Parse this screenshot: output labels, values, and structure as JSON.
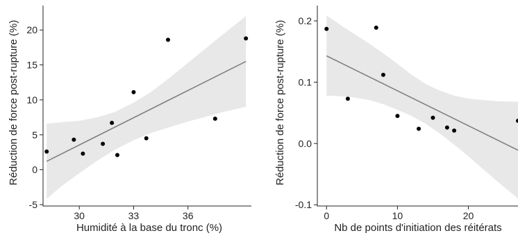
{
  "chart_data": [
    {
      "type": "scatter",
      "title": "",
      "xlabel": "Humidité à la base du tronc (%)",
      "ylabel": "Réduction de force post-rupture (%)",
      "xlim": [
        28.0,
        39.5
      ],
      "ylim": [
        -5.2,
        23.5
      ],
      "xticks": [
        30,
        33,
        36
      ],
      "yticks": [
        -5,
        0,
        5,
        10,
        15,
        20
      ],
      "xtick_labels": [
        "30",
        "33",
        "36"
      ],
      "ytick_labels": [
        "-5",
        "0",
        "5",
        "10",
        "15",
        "20"
      ],
      "grid": false,
      "points": [
        {
          "x": 28.2,
          "y": 2.6
        },
        {
          "x": 29.7,
          "y": 4.3
        },
        {
          "x": 30.2,
          "y": 2.3
        },
        {
          "x": 31.3,
          "y": 3.7
        },
        {
          "x": 31.8,
          "y": 6.7
        },
        {
          "x": 32.1,
          "y": 2.1
        },
        {
          "x": 33.0,
          "y": 11.1
        },
        {
          "x": 33.7,
          "y": 4.5
        },
        {
          "x": 34.9,
          "y": 18.6
        },
        {
          "x": 37.5,
          "y": 7.3
        },
        {
          "x": 39.2,
          "y": 18.8
        }
      ],
      "fit_line": {
        "x": [
          28.2,
          39.2
        ],
        "y": [
          1.2,
          15.5
        ]
      },
      "confidence_band": {
        "x": [
          28.2,
          29.0,
          30.0,
          31.0,
          32.0,
          33.0,
          34.0,
          35.0,
          36.0,
          37.0,
          38.0,
          39.2
        ],
        "upper": [
          6.6,
          6.8,
          7.0,
          7.5,
          8.3,
          9.6,
          11.2,
          13.2,
          15.3,
          17.4,
          19.5,
          22.0
        ],
        "lower": [
          -4.2,
          -2.4,
          -0.5,
          1.3,
          2.9,
          4.2,
          5.3,
          6.1,
          6.9,
          7.6,
          8.3,
          9.0
        ]
      },
      "colors": {
        "points": "#000000",
        "line": "#808080",
        "band": "#e8e8e8"
      }
    },
    {
      "type": "scatter",
      "title": "",
      "xlabel": "Nb de points d'initiation des réitérats",
      "ylabel": "Réduction de force post-rupture (%)",
      "xlim": [
        -1.3,
        27.0
      ],
      "ylim": [
        -0.102,
        0.225
      ],
      "xticks": [
        0,
        10,
        20
      ],
      "yticks": [
        -0.1,
        0.0,
        0.1,
        0.2
      ],
      "xtick_labels": [
        "0",
        "10",
        "20"
      ],
      "ytick_labels": [
        "-0.1",
        "0.0",
        "0.1",
        "0.2"
      ],
      "grid": false,
      "points": [
        {
          "x": 0,
          "y": 0.187
        },
        {
          "x": 3,
          "y": 0.073
        },
        {
          "x": 7,
          "y": 0.189
        },
        {
          "x": 8,
          "y": 0.112
        },
        {
          "x": 10,
          "y": 0.045
        },
        {
          "x": 13,
          "y": 0.024
        },
        {
          "x": 15,
          "y": 0.042
        },
        {
          "x": 17,
          "y": 0.026
        },
        {
          "x": 18,
          "y": 0.021
        },
        {
          "x": 27,
          "y": 0.037
        }
      ],
      "fit_line": {
        "x": [
          0,
          27
        ],
        "y": [
          0.143,
          -0.011
        ]
      },
      "confidence_band": {
        "x": [
          0,
          2,
          4,
          6,
          8,
          10,
          12,
          14,
          16,
          18,
          20,
          22,
          24,
          27
        ],
        "upper": [
          0.209,
          0.193,
          0.178,
          0.163,
          0.147,
          0.13,
          0.112,
          0.097,
          0.086,
          0.078,
          0.073,
          0.071,
          0.069,
          0.068
        ],
        "lower": [
          0.078,
          0.077,
          0.075,
          0.071,
          0.064,
          0.055,
          0.045,
          0.032,
          0.016,
          -0.002,
          -0.021,
          -0.041,
          -0.061,
          -0.09
        ]
      },
      "colors": {
        "points": "#000000",
        "line": "#808080",
        "band": "#e8e8e8"
      }
    }
  ]
}
